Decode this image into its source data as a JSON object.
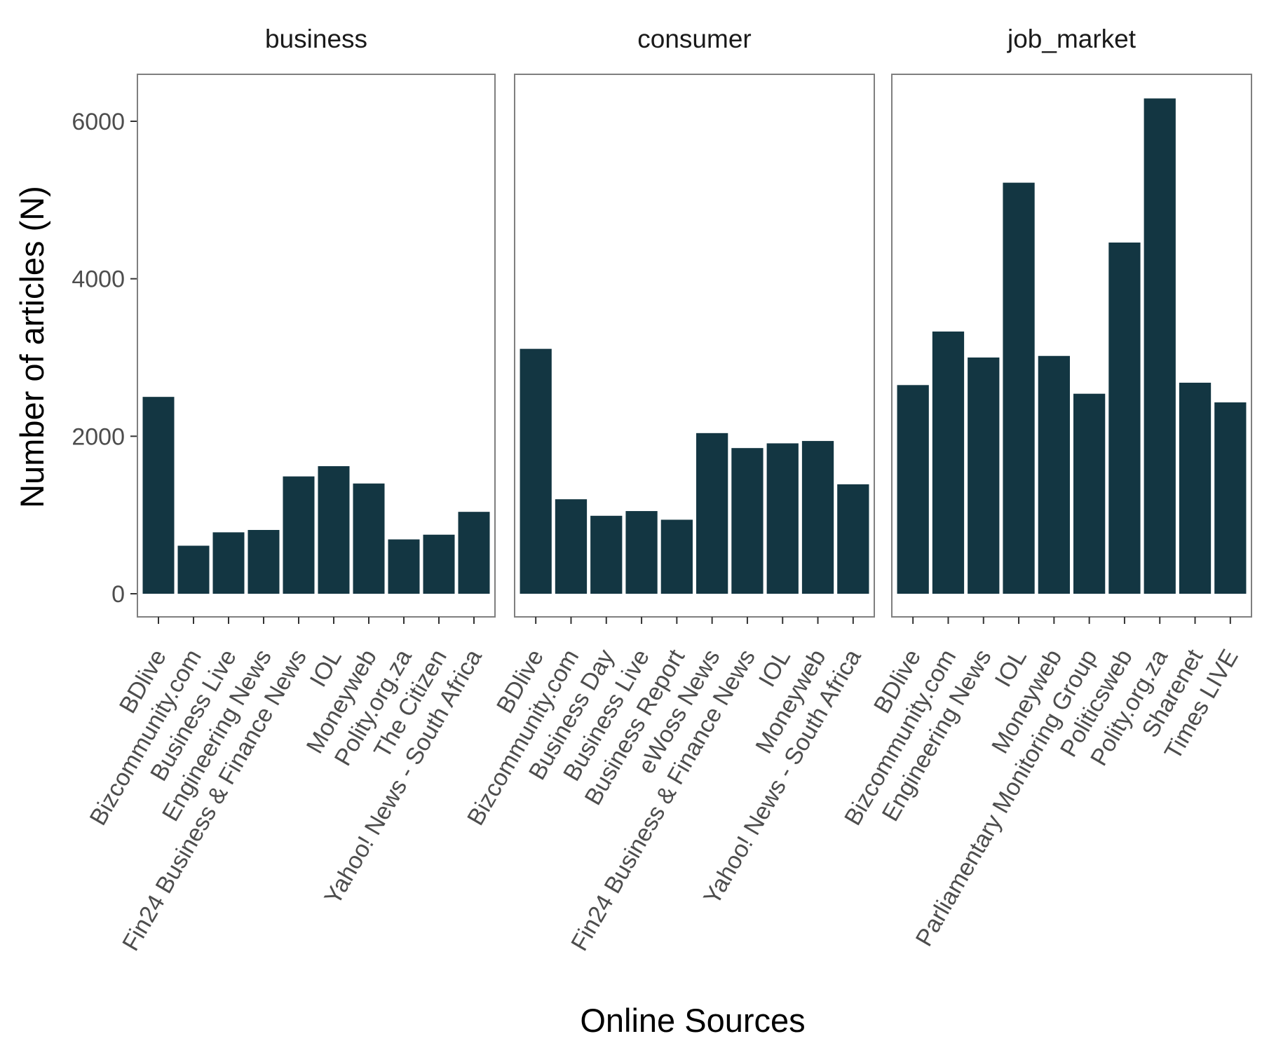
{
  "chart_data": {
    "type": "bar",
    "xlabel": "Online Sources",
    "ylabel": "Number of articles (N)",
    "ylim": [
      0,
      6500
    ],
    "yticks": [
      0,
      2000,
      4000,
      6000
    ],
    "bar_color": "#133642",
    "panel_border_color": "#7f7f7f",
    "grid": false,
    "legend": "none",
    "panels": [
      {
        "title": "business",
        "categories": [
          "BDlive",
          "Bizcommunity.com",
          "Business Live",
          "Engineering News",
          "Fin24  Business & Finance News",
          "IOL",
          "Moneyweb",
          "Polity.org.za",
          "The Citizen",
          "Yahoo! News - South Africa"
        ],
        "values": [
          2500,
          610,
          780,
          810,
          1490,
          1620,
          1400,
          690,
          750,
          1040
        ]
      },
      {
        "title": "consumer",
        "categories": [
          "BDlive",
          "Bizcommunity.com",
          "Business Day",
          "Business Live",
          "Business Report",
          "eWoss News",
          "Fin24  Business & Finance News",
          "IOL",
          "Moneyweb",
          "Yahoo! News - South Africa"
        ],
        "values": [
          3110,
          1200,
          990,
          1050,
          940,
          2040,
          1850,
          1910,
          1940,
          1390
        ]
      },
      {
        "title": "job_market",
        "categories": [
          "BDlive",
          "Bizcommunity.com",
          "Engineering News",
          "IOL",
          "Moneyweb",
          "Parliamentary Monitoring Group",
          "Politicsweb",
          "Polity.org.za",
          "Sharenet",
          "Times LIVE"
        ],
        "values": [
          2650,
          3330,
          3000,
          5220,
          3020,
          2540,
          4460,
          6290,
          2680,
          2430
        ]
      }
    ]
  }
}
